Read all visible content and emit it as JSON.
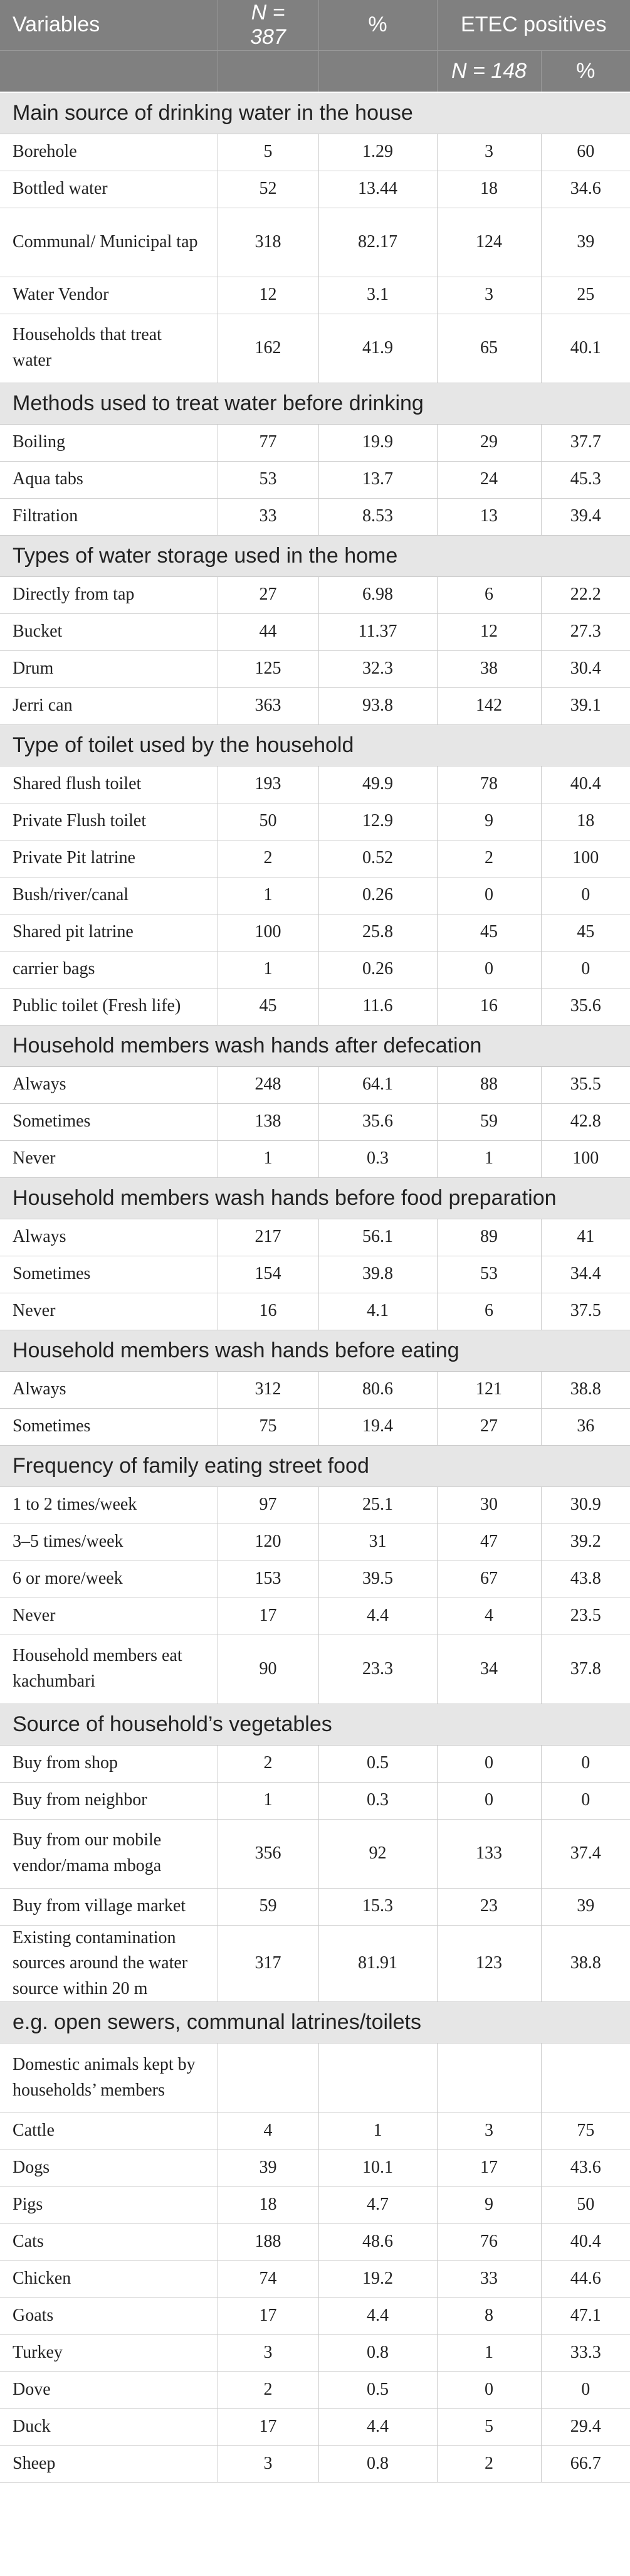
{
  "header": {
    "variables": "Variables",
    "n_total": "N = 387",
    "pct": "%",
    "etec": "ETEC positives",
    "n_etec": "N = 148",
    "pct2": "%"
  },
  "sections": [
    {
      "title": "Main source of drinking water in the house",
      "rows": [
        {
          "label": "Borehole",
          "n": "5",
          "pct": "1.29",
          "etec_n": "3",
          "etec_pct": "60"
        },
        {
          "label": "Bottled water",
          "n": "52",
          "pct": "13.44",
          "etec_n": "18",
          "etec_pct": "34.6"
        },
        {
          "label": "Communal/ Municipal tap",
          "n": "318",
          "pct": "82.17",
          "etec_n": "124",
          "etec_pct": "39"
        },
        {
          "label": "Water Vendor",
          "n": "12",
          "pct": "3.1",
          "etec_n": "3",
          "etec_pct": "25"
        },
        {
          "label": "Households that treat water",
          "n": "162",
          "pct": "41.9",
          "etec_n": "65",
          "etec_pct": "40.1"
        }
      ]
    },
    {
      "title": "Methods used to treat water before drinking",
      "rows": [
        {
          "label": "Boiling",
          "n": "77",
          "pct": "19.9",
          "etec_n": "29",
          "etec_pct": "37.7"
        },
        {
          "label": "Aqua tabs",
          "n": "53",
          "pct": "13.7",
          "etec_n": "24",
          "etec_pct": "45.3"
        },
        {
          "label": "Filtration",
          "n": "33",
          "pct": "8.53",
          "etec_n": "13",
          "etec_pct": "39.4"
        }
      ]
    },
    {
      "title": "Types of water storage used in the home",
      "rows": [
        {
          "label": "Directly from tap",
          "n": "27",
          "pct": "6.98",
          "etec_n": "6",
          "etec_pct": "22.2"
        },
        {
          "label": "Bucket",
          "n": "44",
          "pct": "11.37",
          "etec_n": "12",
          "etec_pct": "27.3"
        },
        {
          "label": "Drum",
          "n": "125",
          "pct": "32.3",
          "etec_n": "38",
          "etec_pct": "30.4"
        },
        {
          "label": "Jerri can",
          "n": "363",
          "pct": "93.8",
          "etec_n": "142",
          "etec_pct": "39.1"
        }
      ]
    },
    {
      "title": "Type of toilet used by the household",
      "rows": [
        {
          "label": "Shared flush toilet",
          "n": "193",
          "pct": "49.9",
          "etec_n": "78",
          "etec_pct": "40.4"
        },
        {
          "label": "Private Flush toilet",
          "n": "50",
          "pct": "12.9",
          "etec_n": "9",
          "etec_pct": "18"
        },
        {
          "label": "Private Pit latrine",
          "n": "2",
          "pct": "0.52",
          "etec_n": "2",
          "etec_pct": "100"
        },
        {
          "label": "Bush/river/canal",
          "n": "1",
          "pct": "0.26",
          "etec_n": "0",
          "etec_pct": "0"
        },
        {
          "label": "Shared pit latrine",
          "n": "100",
          "pct": "25.8",
          "etec_n": "45",
          "etec_pct": "45"
        },
        {
          "label": "carrier bags",
          "n": "1",
          "pct": "0.26",
          "etec_n": "0",
          "etec_pct": "0"
        },
        {
          "label": "Public toilet (Fresh life)",
          "n": "45",
          "pct": "11.6",
          "etec_n": "16",
          "etec_pct": "35.6"
        }
      ]
    },
    {
      "title": "Household members wash hands after defecation",
      "rows": [
        {
          "label": "Always",
          "n": "248",
          "pct": "64.1",
          "etec_n": "88",
          "etec_pct": "35.5"
        },
        {
          "label": "Sometimes",
          "n": "138",
          "pct": "35.6",
          "etec_n": "59",
          "etec_pct": "42.8"
        },
        {
          "label": "Never",
          "n": "1",
          "pct": "0.3",
          "etec_n": "1",
          "etec_pct": "100"
        }
      ]
    },
    {
      "title": "Household members wash hands before food preparation",
      "rows": [
        {
          "label": "Always",
          "n": "217",
          "pct": "56.1",
          "etec_n": "89",
          "etec_pct": "41"
        },
        {
          "label": "Sometimes",
          "n": "154",
          "pct": "39.8",
          "etec_n": "53",
          "etec_pct": "34.4"
        },
        {
          "label": "Never",
          "n": "16",
          "pct": "4.1",
          "etec_n": "6",
          "etec_pct": "37.5"
        }
      ]
    },
    {
      "title": "Household members wash hands before eating",
      "rows": [
        {
          "label": "Always",
          "n": "312",
          "pct": "80.6",
          "etec_n": "121",
          "etec_pct": "38.8"
        },
        {
          "label": "Sometimes",
          "n": "75",
          "pct": "19.4",
          "etec_n": "27",
          "etec_pct": "36"
        }
      ]
    },
    {
      "title": "Frequency of family eating street food",
      "rows": [
        {
          "label": "1 to 2 times/week",
          "n": "97",
          "pct": "25.1",
          "etec_n": "30",
          "etec_pct": "30.9"
        },
        {
          "label": "3–5 times/week",
          "n": "120",
          "pct": "31",
          "etec_n": "47",
          "etec_pct": "39.2"
        },
        {
          "label": "6 or more/week",
          "n": "153",
          "pct": "39.5",
          "etec_n": "67",
          "etec_pct": "43.8"
        },
        {
          "label": "Never",
          "n": "17",
          "pct": "4.4",
          "etec_n": "4",
          "etec_pct": "23.5"
        },
        {
          "label": "Household members eat kachumbari",
          "n": "90",
          "pct": "23.3",
          "etec_n": "34",
          "etec_pct": "37.8"
        }
      ]
    },
    {
      "title": "Source of household’s vegetables",
      "rows": [
        {
          "label": "Buy from shop",
          "n": "2",
          "pct": "0.5",
          "etec_n": "0",
          "etec_pct": "0"
        },
        {
          "label": "Buy from neighbor",
          "n": "1",
          "pct": "0.3",
          "etec_n": "0",
          "etec_pct": "0"
        },
        {
          "label": "Buy from our mobile vendor/mama mboga",
          "n": "356",
          "pct": "92",
          "etec_n": "133",
          "etec_pct": "37.4"
        },
        {
          "label": "Buy from village market",
          "n": "59",
          "pct": "15.3",
          "etec_n": "23",
          "etec_pct": "39"
        },
        {
          "label": "Existing contamination sources around the water source within 20 m",
          "n": "317",
          "pct": "81.91",
          "etec_n": "123",
          "etec_pct": "38.8"
        }
      ]
    },
    {
      "title": "e.g. open sewers, communal latrines/toilets",
      "rows": [
        {
          "label": "Domestic animals kept by households’ members",
          "n": "",
          "pct": "",
          "etec_n": "",
          "etec_pct": ""
        },
        {
          "label": "Cattle",
          "n": "4",
          "pct": "1",
          "etec_n": "3",
          "etec_pct": "75"
        },
        {
          "label": "Dogs",
          "n": "39",
          "pct": "10.1",
          "etec_n": "17",
          "etec_pct": "43.6"
        },
        {
          "label": "Pigs",
          "n": "18",
          "pct": "4.7",
          "etec_n": "9",
          "etec_pct": "50"
        },
        {
          "label": "Cats",
          "n": "188",
          "pct": "48.6",
          "etec_n": "76",
          "etec_pct": "40.4"
        },
        {
          "label": "Chicken",
          "n": "74",
          "pct": "19.2",
          "etec_n": "33",
          "etec_pct": "44.6"
        },
        {
          "label": "Goats",
          "n": "17",
          "pct": "4.4",
          "etec_n": "8",
          "etec_pct": "47.1"
        },
        {
          "label": "Turkey",
          "n": "3",
          "pct": "0.8",
          "etec_n": "1",
          "etec_pct": "33.3"
        },
        {
          "label": "Dove",
          "n": "2",
          "pct": "0.5",
          "etec_n": "0",
          "etec_pct": "0"
        },
        {
          "label": "Duck",
          "n": "17",
          "pct": "4.4",
          "etec_n": "5",
          "etec_pct": "29.4"
        },
        {
          "label": "Sheep",
          "n": "3",
          "pct": "0.8",
          "etec_n": "2",
          "etec_pct": "66.7"
        }
      ]
    }
  ]
}
